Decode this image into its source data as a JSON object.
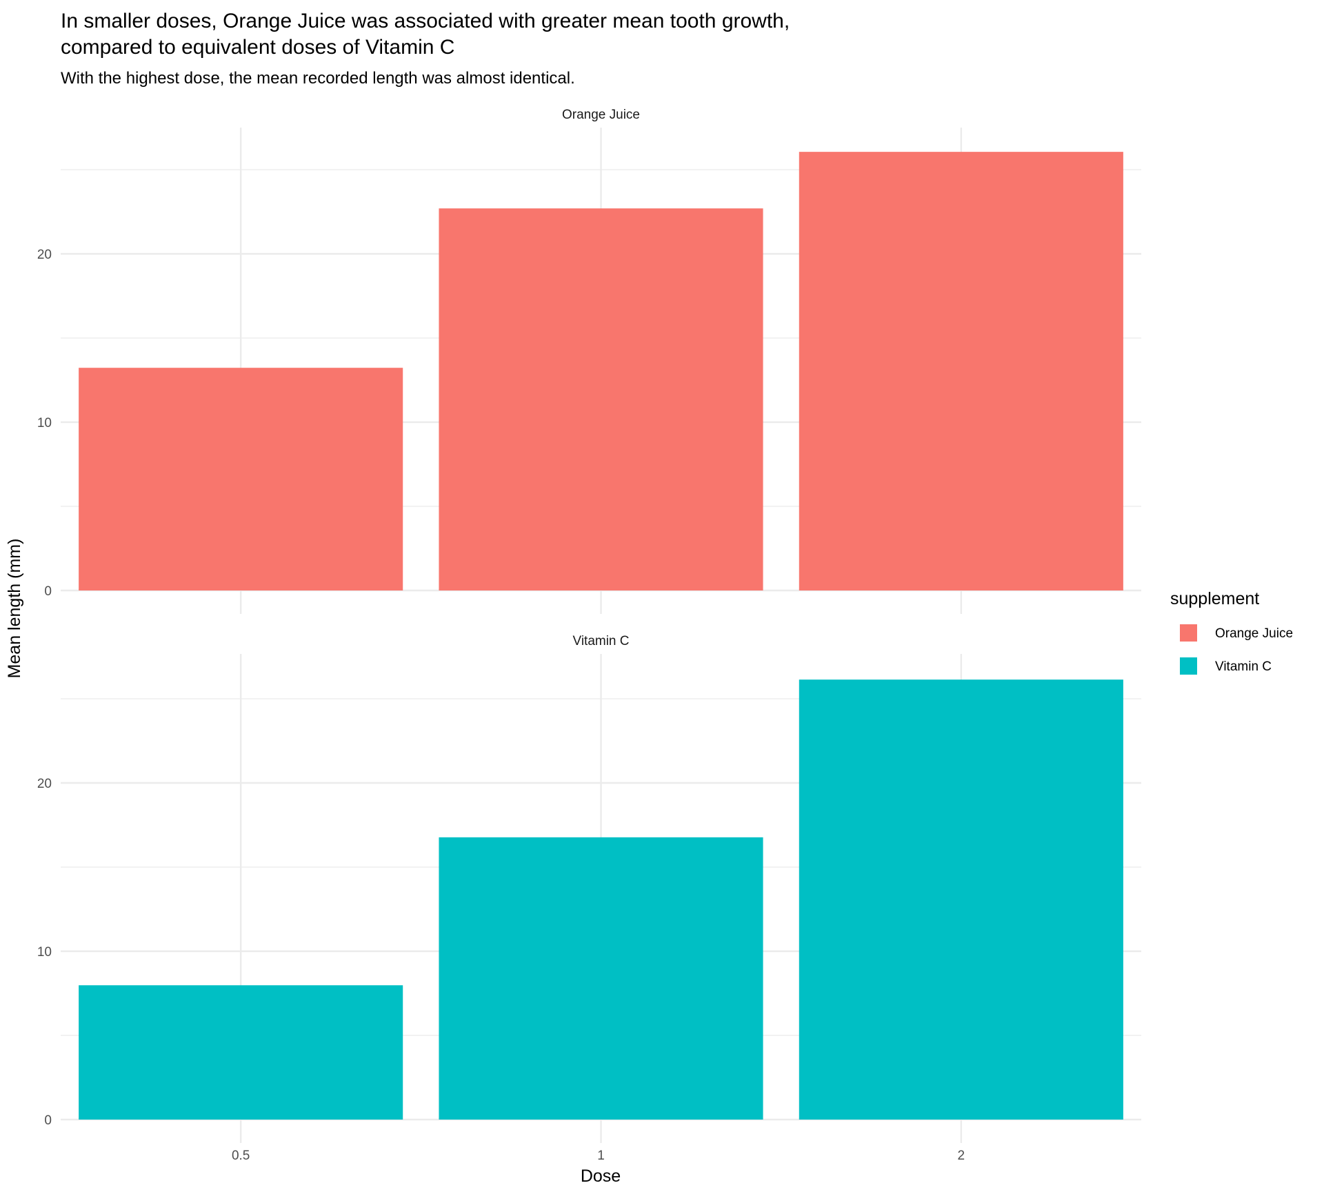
{
  "chart_data": {
    "type": "bar",
    "title_lines": [
      "In smaller doses, Orange Juice was associated with greater mean tooth growth,",
      "compared to equivalent doses of Vitamin C"
    ],
    "subtitle": "With the highest dose, the mean recorded length was almost identical.",
    "xlabel": "Dose",
    "ylabel": "Mean length (mm)",
    "categories": [
      "0.5",
      "1",
      "2"
    ],
    "y_ticks": [
      "0",
      "10",
      "20"
    ],
    "ylim": [
      0,
      27.5
    ],
    "grid": true,
    "facets": [
      {
        "label": "Orange Juice",
        "series": "Orange Juice",
        "color": "#F8766D",
        "values": [
          13.23,
          22.7,
          26.06
        ]
      },
      {
        "label": "Vitamin C",
        "series": "Vitamin C",
        "color": "#00BFC4",
        "values": [
          7.98,
          16.77,
          26.14
        ]
      }
    ],
    "legend": {
      "title": "supplement",
      "position": "right",
      "items": [
        {
          "label": "Orange Juice",
          "color": "#F8766D"
        },
        {
          "label": "Vitamin C",
          "color": "#00BFC4"
        }
      ]
    }
  }
}
